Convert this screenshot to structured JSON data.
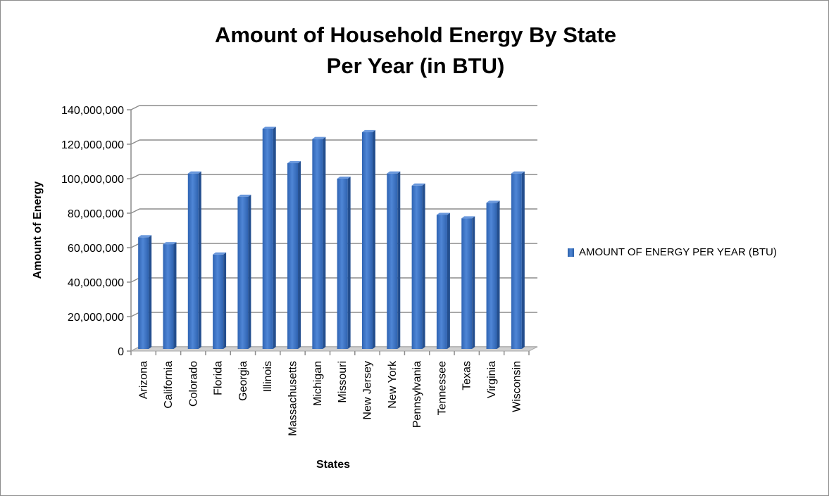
{
  "chart_data": {
    "type": "bar",
    "title_lines": [
      "Amount of Household Energy By State",
      "Per Year (in BTU)"
    ],
    "xlabel": "States",
    "ylabel": "Amount of Energy",
    "categories": [
      "Arizona",
      "California",
      "Colorado",
      "Florida",
      "Georgia",
      "Illinois",
      "Massachusetts",
      "Michigan",
      "Missouri",
      "New Jersey",
      "New York",
      "Pennsylvania",
      "Tennessee",
      "Texas",
      "Virginia",
      "Wisconsin"
    ],
    "series": [
      {
        "name": "AMOUNT OF ENERGY PER YEAR (BTU)",
        "values": [
          66000000,
          62000000,
          103000000,
          56000000,
          89500000,
          129000000,
          109000000,
          123000000,
          100000000,
          127000000,
          103000000,
          96000000,
          79000000,
          77000000,
          86000000,
          103000000
        ]
      }
    ],
    "ylim": [
      0,
      140000000
    ],
    "yticks": [
      0,
      20000000,
      40000000,
      60000000,
      80000000,
      100000000,
      120000000,
      140000000
    ],
    "ytick_labels": [
      "0",
      "20,000,000",
      "40,000,000",
      "60,000,000",
      "80,000,000",
      "100,000,000",
      "120,000,000",
      "140,000,000"
    ],
    "grid": true,
    "legend_position": "right",
    "colors": {
      "bar_front": "#3a73c4",
      "bar_side": "#244f8f",
      "bar_top": "#6a98dc",
      "gridline": "#8c8c8c",
      "floor": "#d0d0d0"
    }
  }
}
